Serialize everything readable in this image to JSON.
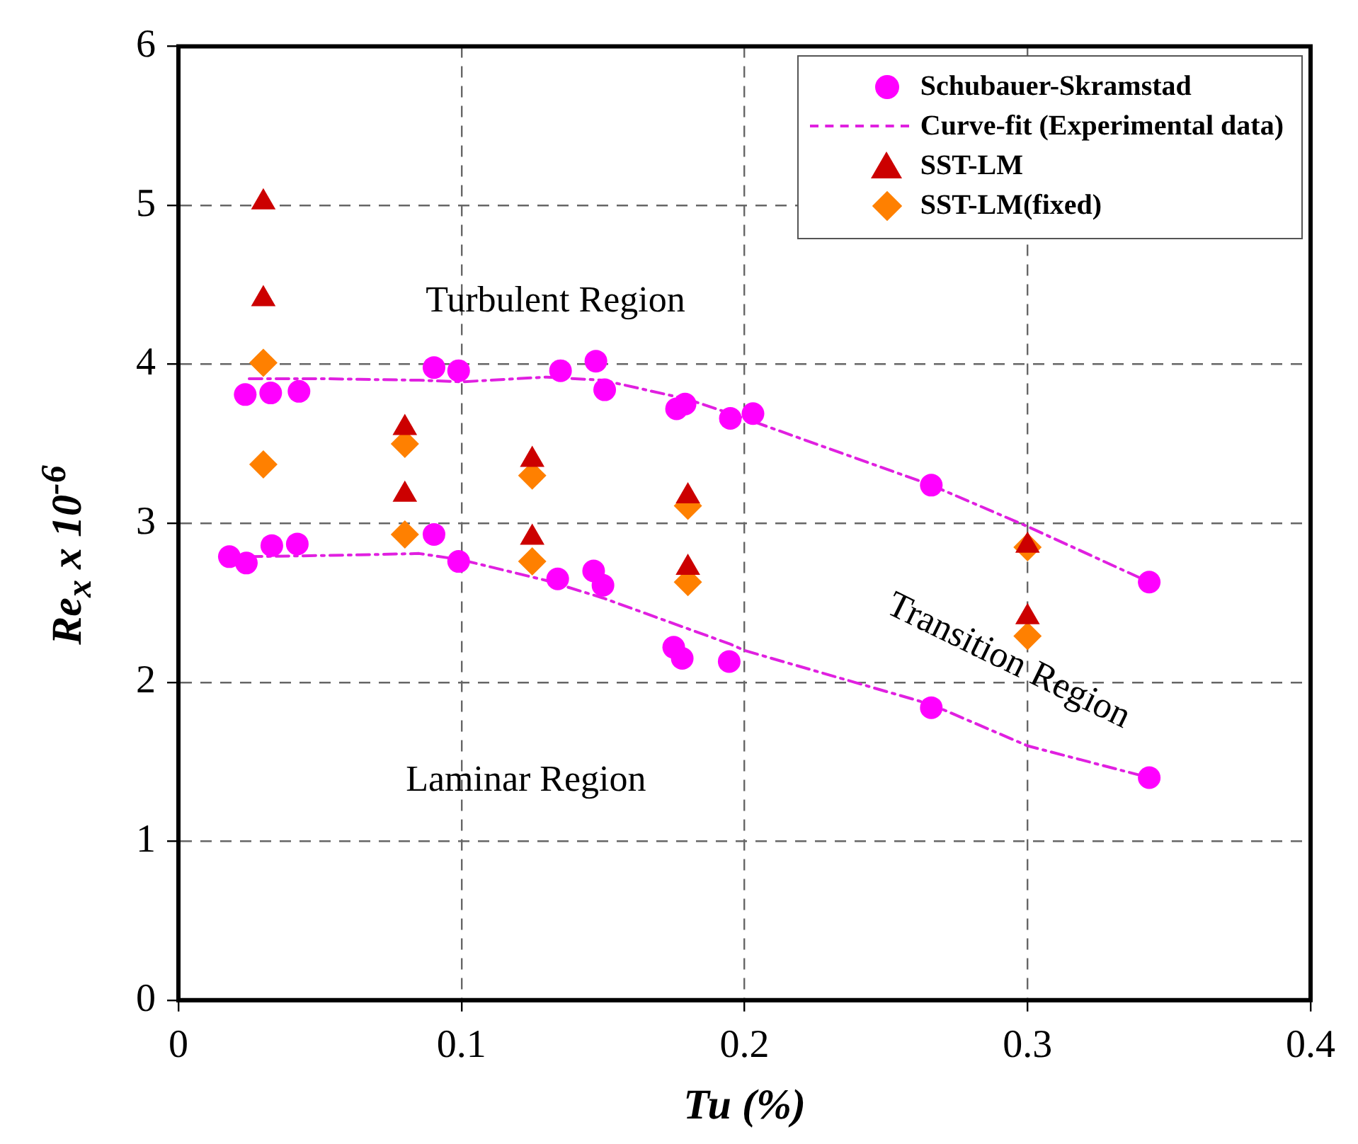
{
  "chart_data": {
    "type": "scatter",
    "xlabel": "Tu (%)",
    "ylabel": "Re$_{x}$ x 10$^{-6}$",
    "xlim": [
      0,
      0.4
    ],
    "xticks": [
      0,
      0.1,
      0.2,
      0.3,
      0.4
    ],
    "ylim": [
      0,
      6
    ],
    "yticks": [
      0,
      1,
      2,
      3,
      4,
      5,
      6
    ],
    "grid": true,
    "legend": "top right",
    "series": [
      {
        "name": "Schubauer-Skramstad",
        "type": "scatter",
        "marker": "circle",
        "color": "#ff00ff",
        "x": [
          0.0236,
          0.0326,
          0.0426,
          0.0903,
          0.099,
          0.135,
          0.1475,
          0.1506,
          0.176,
          0.179,
          0.195,
          0.203,
          0.266,
          0.343,
          0.018,
          0.024,
          0.033,
          0.042,
          0.0903,
          0.099,
          0.134,
          0.1467,
          0.15,
          0.175,
          0.178,
          0.1946,
          0.266,
          0.343
        ],
        "values": [
          3.81,
          3.82,
          3.83,
          3.98,
          3.96,
          3.96,
          4.02,
          3.84,
          3.72,
          3.75,
          3.66,
          3.69,
          3.24,
          2.63,
          2.79,
          2.75,
          2.86,
          2.87,
          2.93,
          2.76,
          2.65,
          2.7,
          2.61,
          2.22,
          2.15,
          2.13,
          1.84,
          1.4
        ]
      },
      {
        "name": "Curve-fit (Experimental data)",
        "type": "line",
        "marker": "none",
        "line_style": "dashed",
        "color": "#e020e0",
        "x": [
          0.025,
          0.05,
          0.085,
          0.1,
          0.13,
          0.15,
          0.18,
          0.2,
          0.266,
          0.3,
          0.343
        ],
        "values": [
          3.91,
          3.91,
          3.9,
          3.89,
          3.92,
          3.9,
          3.78,
          3.66,
          3.24,
          2.98,
          2.63
        ]
      },
      {
        "type": "line",
        "marker": "none",
        "line_style": "dashed",
        "color": "#e020e0",
        "x": [
          0.025,
          0.06,
          0.085,
          0.1,
          0.13,
          0.15,
          0.195,
          0.2,
          0.266,
          0.3,
          0.343
        ],
        "values": [
          2.79,
          2.8,
          2.81,
          2.77,
          2.64,
          2.53,
          2.24,
          2.2,
          1.86,
          1.6,
          1.4
        ]
      },
      {
        "name": "SST-LM",
        "type": "scatter",
        "marker": "triangle",
        "color": "#cc0000",
        "x": [
          0.03,
          0.03,
          0.08,
          0.08,
          0.125,
          0.125,
          0.18,
          0.18,
          0.3,
          0.3
        ],
        "values": [
          5.02,
          4.41,
          3.6,
          3.18,
          3.4,
          2.91,
          3.17,
          2.72,
          2.86,
          2.41
        ]
      },
      {
        "name": "SST-LM(fixed)",
        "type": "scatter",
        "marker": "diamond",
        "color": "#ff8000",
        "x": [
          0.03,
          0.03,
          0.08,
          0.08,
          0.125,
          0.125,
          0.18,
          0.18,
          0.3,
          0.3
        ],
        "values": [
          4.01,
          3.37,
          3.5,
          2.93,
          3.3,
          2.76,
          3.11,
          2.63,
          2.85,
          2.29
        ]
      }
    ],
    "annotations": [
      "Turbulent Region",
      "Laminar Region",
      "Transition Region"
    ]
  }
}
